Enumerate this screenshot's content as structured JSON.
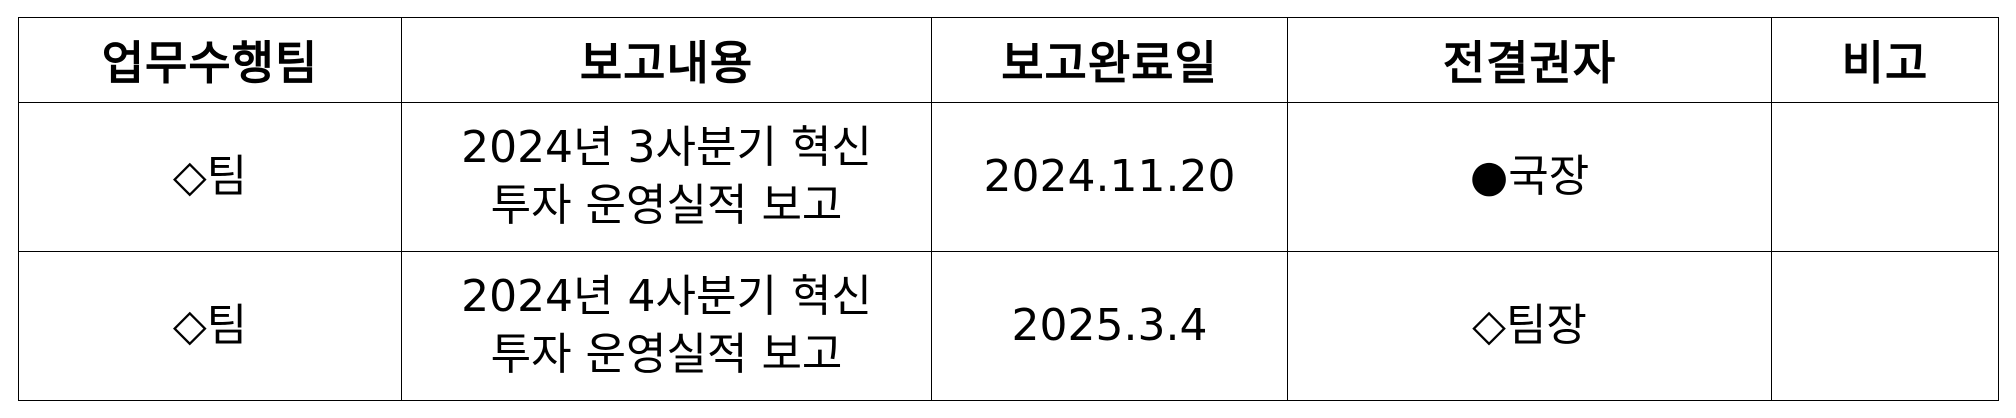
{
  "table": {
    "headers": [
      "업무수행팀",
      "보고내용",
      "보고완료일",
      "전결권자",
      "비고"
    ],
    "rows": [
      {
        "team": "◇팀",
        "content_lines": [
          "2024년 3사분기 혁신",
          "투자 운영실적 보고"
        ],
        "completion_date": "2024.11.20",
        "approver_mark": "●",
        "approver": "국장",
        "remarks": ""
      },
      {
        "team": "◇팀",
        "content_lines": [
          "2024년 4사분기 혁신",
          "투자 운영실적 보고"
        ],
        "completion_date": "2025.3.4",
        "approver_mark": "◇",
        "approver": "팀장",
        "remarks": ""
      }
    ]
  }
}
